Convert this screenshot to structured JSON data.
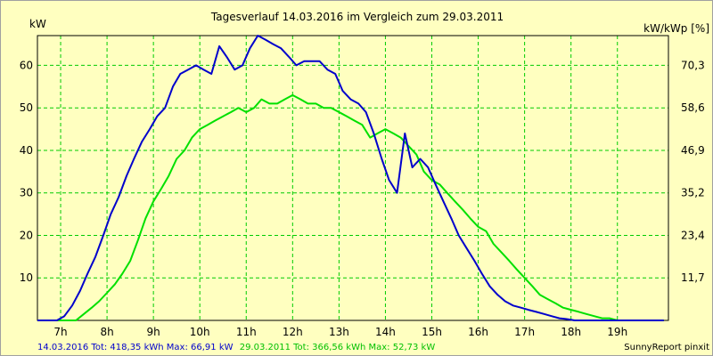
{
  "chart_data": {
    "type": "line",
    "title": "Tagesverlauf 14.03.2016 im Vergleich zum 29.03.2011",
    "ylabel_left": "kW",
    "ylabel_right": "kW/kWp [%]",
    "x_unit": "hour",
    "xlim": [
      6.5,
      20.1
    ],
    "ylim": [
      0,
      67
    ],
    "x_ticks": [
      {
        "label": "7h",
        "value": 7
      },
      {
        "label": "8h",
        "value": 8
      },
      {
        "label": "9h",
        "value": 9
      },
      {
        "label": "10h",
        "value": 10
      },
      {
        "label": "11h",
        "value": 11
      },
      {
        "label": "12h",
        "value": 12
      },
      {
        "label": "13h",
        "value": 13
      },
      {
        "label": "14h",
        "value": 14
      },
      {
        "label": "15h",
        "value": 15
      },
      {
        "label": "16h",
        "value": 16
      },
      {
        "label": "17h",
        "value": 17
      },
      {
        "label": "18h",
        "value": 18
      },
      {
        "label": "19h",
        "value": 19
      }
    ],
    "y_ticks_left": [
      {
        "label": "10",
        "value": 10
      },
      {
        "label": "20",
        "value": 20
      },
      {
        "label": "30",
        "value": 30
      },
      {
        "label": "40",
        "value": 40
      },
      {
        "label": "50",
        "value": 50
      },
      {
        "label": "60",
        "value": 60
      }
    ],
    "y_ticks_right": [
      {
        "label": "11,7",
        "value": 10
      },
      {
        "label": "23,4",
        "value": 20
      },
      {
        "label": "35,2",
        "value": 30
      },
      {
        "label": "46,9",
        "value": 40
      },
      {
        "label": "58,6",
        "value": 50
      },
      {
        "label": "70,3",
        "value": 60
      }
    ],
    "grid": true,
    "colors": {
      "background": "#ffffc0",
      "grid": "#00cc00",
      "axis": "#000000",
      "series1": "#0000cc",
      "series2": "#00e000"
    },
    "series": [
      {
        "name": "14.03.2016",
        "summary": "14.03.2016 Tot: 418,35 kWh Max: 66,91 kW",
        "color": "#0000cc",
        "x": [
          6.5,
          6.92,
          7.08,
          7.25,
          7.42,
          7.58,
          7.75,
          7.92,
          8.08,
          8.25,
          8.42,
          8.58,
          8.75,
          8.92,
          9.08,
          9.25,
          9.42,
          9.58,
          9.75,
          9.92,
          10.08,
          10.25,
          10.42,
          10.58,
          10.75,
          10.92,
          11.08,
          11.25,
          11.42,
          11.58,
          11.75,
          11.92,
          12.08,
          12.25,
          12.42,
          12.58,
          12.75,
          12.92,
          13.08,
          13.25,
          13.42,
          13.58,
          13.75,
          13.92,
          14.08,
          14.25,
          14.42,
          14.58,
          14.75,
          14.92,
          15.08,
          15.25,
          15.42,
          15.58,
          15.75,
          15.92,
          16.08,
          16.25,
          16.42,
          16.58,
          16.75,
          16.92,
          17.08,
          17.25,
          17.42,
          17.58,
          17.75,
          17.92,
          18.08,
          18.25,
          18.42,
          18.58,
          18.75,
          19.0,
          20.0
        ],
        "y": [
          0,
          0,
          1,
          3.5,
          7,
          11,
          15,
          20,
          25,
          29,
          34,
          38,
          42,
          45,
          48,
          50,
          55,
          58,
          59,
          60,
          59,
          58,
          64.5,
          62,
          59,
          60,
          64,
          67,
          66,
          65,
          64,
          62,
          60,
          61,
          61,
          61,
          59,
          58,
          54,
          52,
          51,
          49,
          44,
          38,
          33,
          30,
          44,
          36,
          38,
          36,
          32,
          28,
          24,
          20,
          17,
          14,
          11,
          8,
          6,
          4.5,
          3.5,
          3,
          2.5,
          2,
          1.5,
          1,
          0.5,
          0.3,
          0,
          0,
          0,
          0,
          0,
          0,
          0
        ]
      },
      {
        "name": "29.03.2011",
        "summary": "29.03.2011 Tot: 366,56 kWh Max: 52,73 kW",
        "color": "#00e000",
        "x": [
          6.5,
          7.33,
          7.5,
          7.67,
          7.83,
          8.0,
          8.17,
          8.33,
          8.5,
          8.67,
          8.83,
          9.0,
          9.17,
          9.33,
          9.5,
          9.67,
          9.83,
          10.0,
          10.17,
          10.33,
          10.5,
          10.67,
          10.83,
          11.0,
          11.17,
          11.33,
          11.5,
          11.67,
          11.83,
          12.0,
          12.17,
          12.33,
          12.5,
          12.67,
          12.83,
          13.0,
          13.17,
          13.33,
          13.5,
          13.67,
          13.83,
          14.0,
          14.17,
          14.33,
          14.5,
          14.67,
          14.83,
          15.0,
          15.17,
          15.33,
          15.5,
          15.67,
          15.83,
          16.0,
          16.17,
          16.33,
          16.5,
          16.67,
          16.83,
          17.0,
          17.17,
          17.33,
          17.5,
          17.67,
          17.83,
          18.0,
          18.17,
          18.33,
          18.5,
          18.67,
          18.83,
          19.0,
          19.17,
          19.33,
          19.5,
          19.67,
          20.0
        ],
        "y": [
          0,
          0,
          1.5,
          3,
          4.5,
          6.5,
          8.5,
          11,
          14,
          19,
          24,
          28,
          31,
          34,
          38,
          40,
          43,
          45,
          46,
          47,
          48,
          49,
          50,
          49,
          50,
          52,
          51,
          51,
          52,
          53,
          52,
          51,
          51,
          50,
          50,
          49,
          48,
          47,
          46,
          43,
          44,
          45,
          44,
          43,
          41,
          39,
          35,
          33,
          32,
          30,
          28,
          26,
          24,
          22,
          21,
          18,
          16,
          14,
          12,
          10,
          8,
          6,
          5,
          4,
          3,
          2.5,
          2,
          1.5,
          1,
          0.5,
          0.5,
          0,
          0,
          0,
          0,
          0,
          0
        ]
      }
    ]
  },
  "footer": {
    "summary1": "14.03.2016 Tot: 418,35 kWh Max: 66,91 kW",
    "summary2": "29.03.2011 Tot: 366,56 kWh Max: 52,73 kW",
    "credit": "SunnyReport pinxit"
  }
}
